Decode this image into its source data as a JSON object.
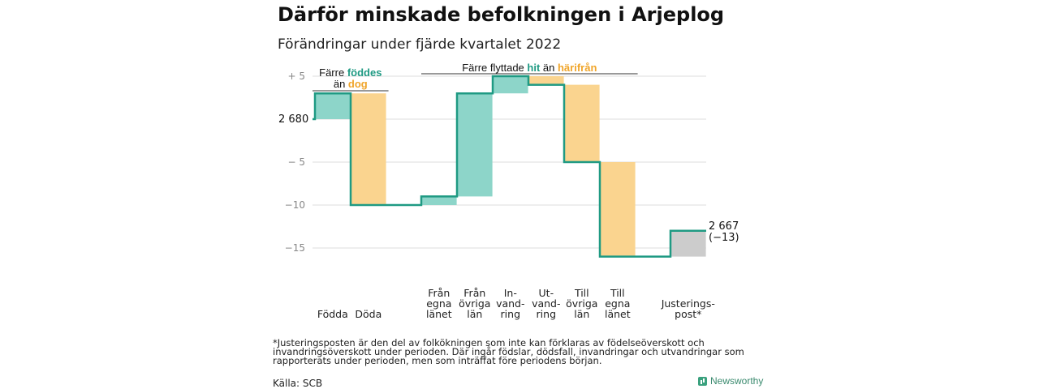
{
  "title": "Därför minskade befolkningen i Arjeplog",
  "subtitle": "Förändringar under fjärde kvartalet 2022",
  "footnote": "*Justeringsposten är den del av folkökningen som inte kan förklaras av födelseöverskott och invandringsöverskott under perioden. Där ingår födslar, dödsfall, invandringar och utvandringar som rapporterats under perioden, men som inträffat före periodens början.",
  "source": "Källa: SCB",
  "brand": "Newsworthy",
  "colors": {
    "increase": "#8dd5c9",
    "decrease": "#fad48f",
    "adjustment": "#cccccc",
    "step_line": "#1f9a83",
    "teal_text": "#1f9a83",
    "orange_text": "#f0a52a",
    "grid": "#dddddd",
    "axis_text": "#888888"
  },
  "chart_data": {
    "type": "waterfall",
    "title": "Därför minskade befolkningen i Arjeplog",
    "subtitle": "Förändringar under fjärde kvartalet 2022",
    "start_value": 2680,
    "start_label": "2 680",
    "end_value": 2667,
    "end_label": "2 667",
    "end_change_label": "(−13)",
    "y_ticks": [
      {
        "value": 5,
        "label": "+ 5"
      },
      {
        "value": 0,
        "label": ""
      },
      {
        "value": -5,
        "label": "− 5"
      },
      {
        "value": -10,
        "label": "−10"
      },
      {
        "value": -15,
        "label": "−15"
      }
    ],
    "ylim": [
      -16,
      5
    ],
    "steps": [
      {
        "category": "Födda",
        "change": 3,
        "kind": "increase"
      },
      {
        "category": "Döda",
        "change": -13,
        "kind": "decrease"
      },
      {
        "category": "Från egna länet",
        "change": 1,
        "kind": "increase"
      },
      {
        "category": "Från övriga län",
        "change": 12,
        "kind": "increase"
      },
      {
        "category": "In-vand-ring",
        "change": 2,
        "kind": "increase"
      },
      {
        "category": "Ut-vand-ring",
        "change": -1,
        "kind": "decrease"
      },
      {
        "category": "Till övriga län",
        "change": -9,
        "kind": "decrease"
      },
      {
        "category": "Till egna länet",
        "change": -11,
        "kind": "decrease"
      },
      {
        "category": "Justerings-post*",
        "change": 3,
        "kind": "adjustment"
      }
    ],
    "category_label_lines": [
      [
        "Födda"
      ],
      [
        "Döda"
      ],
      [
        "Från",
        "egna",
        "länet"
      ],
      [
        "Från",
        "övriga",
        "län"
      ],
      [
        "In-",
        "vand-",
        "ring"
      ],
      [
        "Ut-",
        "vand-",
        "ring"
      ],
      [
        "Till",
        "övriga",
        "län"
      ],
      [
        "Till",
        "egna",
        "länet"
      ],
      [
        "Justerings-",
        "post*"
      ]
    ],
    "annotations": [
      {
        "parts": [
          {
            "text": "Färre ",
            "color": "dark"
          },
          {
            "text": "föddes",
            "color": "teal"
          },
          {
            "break": true
          },
          {
            "text": "än ",
            "color": "dark"
          },
          {
            "text": "dog",
            "color": "orange"
          }
        ],
        "spans_steps": [
          0,
          1
        ]
      },
      {
        "parts": [
          {
            "text": "Färre flyttade ",
            "color": "dark"
          },
          {
            "text": "hit",
            "color": "teal"
          },
          {
            "text": " än ",
            "color": "dark"
          },
          {
            "text": "härifrån",
            "color": "orange"
          }
        ],
        "spans_steps": [
          2,
          7
        ]
      }
    ]
  }
}
